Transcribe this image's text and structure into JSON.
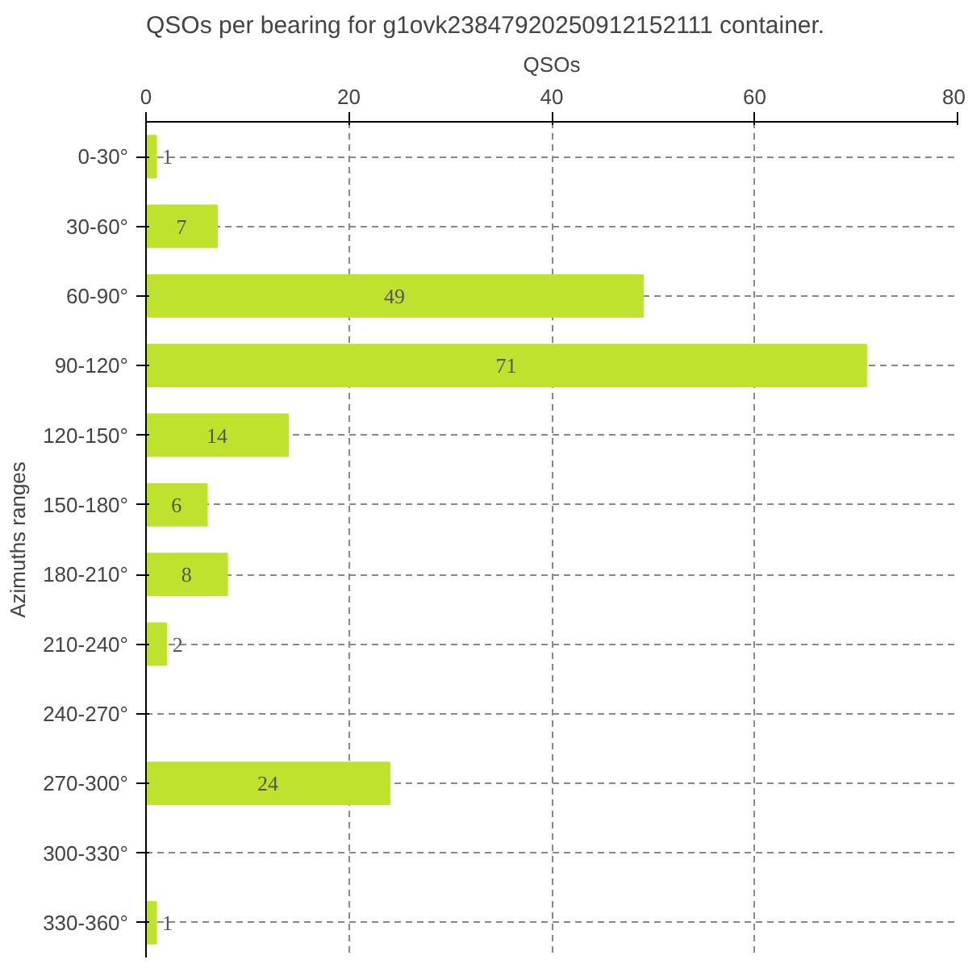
{
  "chart_data": {
    "type": "bar",
    "orientation": "horizontal",
    "title": "QSOs per bearing for g1ovk23847920250912152111 container.",
    "xlabel": "QSOs",
    "ylabel": "Azimuths ranges",
    "categories": [
      "0-30°",
      "30-60°",
      "60-90°",
      "90-120°",
      "120-150°",
      "150-180°",
      "180-210°",
      "210-240°",
      "240-270°",
      "270-300°",
      "300-330°",
      "330-360°"
    ],
    "values": [
      1,
      7,
      49,
      71,
      14,
      6,
      8,
      2,
      0,
      24,
      0,
      1
    ],
    "value_labels": [
      "1",
      "7",
      "49",
      "71",
      "14",
      "6",
      "8",
      "2",
      null,
      "24",
      null,
      "1"
    ],
    "color": "#bfe22f",
    "xlim": [
      0,
      80
    ],
    "xticks": [
      0,
      20,
      40,
      60,
      80
    ],
    "grid": true
  }
}
